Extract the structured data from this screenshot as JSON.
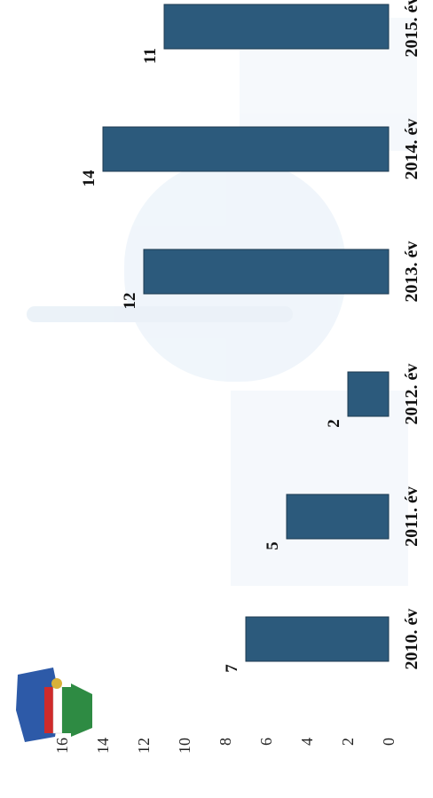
{
  "chart_data": {
    "type": "bar",
    "orientation": "rotated-90",
    "categories": [
      "2010. év",
      "2011. év",
      "2012. év",
      "2013. év",
      "2014. év",
      "2015. év"
    ],
    "values": [
      7,
      5,
      2,
      12,
      14,
      11
    ],
    "data_labels": [
      "7",
      "5",
      "2",
      "12",
      "14",
      "11"
    ],
    "ylim": [
      0,
      16
    ],
    "y_ticks": [
      "0",
      "2",
      "4",
      "6",
      "8",
      "10",
      "12",
      "14",
      "16"
    ],
    "grid": false,
    "bar_color": "#2c5a7c",
    "logo_icon": "hungarian-police-crest-icon"
  }
}
